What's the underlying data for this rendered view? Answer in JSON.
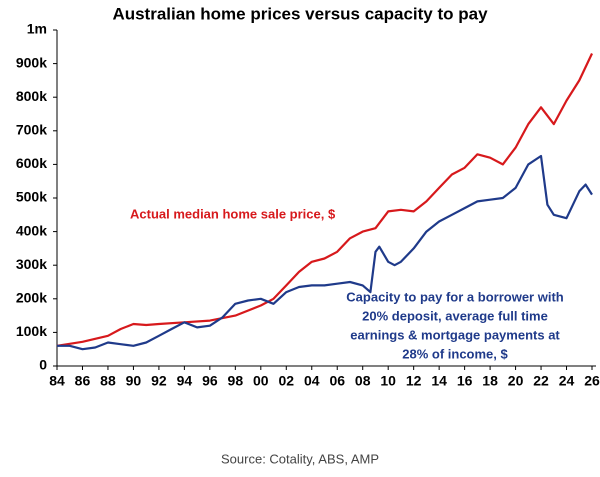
{
  "chart_data": {
    "type": "line",
    "title": "Australian home prices versus capacity to pay",
    "source": "Source: Cotality, ABS, AMP",
    "xlim": [
      1984,
      2026.3
    ],
    "xticks": [
      {
        "value": 1984,
        "label": "84"
      },
      {
        "value": 1986,
        "label": "86"
      },
      {
        "value": 1988,
        "label": "88"
      },
      {
        "value": 1990,
        "label": "90"
      },
      {
        "value": 1992,
        "label": "92"
      },
      {
        "value": 1994,
        "label": "94"
      },
      {
        "value": 1996,
        "label": "96"
      },
      {
        "value": 1998,
        "label": "98"
      },
      {
        "value": 2000,
        "label": "00"
      },
      {
        "value": 2002,
        "label": "02"
      },
      {
        "value": 2004,
        "label": "04"
      },
      {
        "value": 2006,
        "label": "06"
      },
      {
        "value": 2008,
        "label": "08"
      },
      {
        "value": 2010,
        "label": "10"
      },
      {
        "value": 2012,
        "label": "12"
      },
      {
        "value": 2014,
        "label": "14"
      },
      {
        "value": 2016,
        "label": "16"
      },
      {
        "value": 2018,
        "label": "18"
      },
      {
        "value": 2020,
        "label": "20"
      },
      {
        "value": 2022,
        "label": "22"
      },
      {
        "value": 2024,
        "label": "24"
      },
      {
        "value": 2026,
        "label": "26"
      }
    ],
    "ylim": [
      0,
      1000000
    ],
    "yticks": [
      0,
      {
        "value": 100000,
        "label": "100k"
      },
      {
        "value": 200000,
        "label": "200k"
      },
      {
        "value": 300000,
        "label": "300k"
      },
      {
        "value": 400000,
        "label": "400k"
      },
      {
        "value": 500000,
        "label": "500k"
      },
      {
        "value": 600000,
        "label": "600k"
      },
      {
        "value": 700000,
        "label": "700k"
      },
      {
        "value": 800000,
        "label": "800k"
      },
      {
        "value": 900000,
        "label": "900k"
      },
      {
        "value": 1000000,
        "label": "1m"
      }
    ],
    "series": [
      {
        "name": "Actual median home sale price, $",
        "color": "#d7191c",
        "x": [
          1984,
          1986,
          1988,
          1989,
          1990,
          1991,
          1992,
          1994,
          1996,
          1998,
          2000,
          2001,
          2002,
          2003,
          2004,
          2005,
          2006,
          2007,
          2008,
          2009,
          2010,
          2011,
          2012,
          2013,
          2014,
          2015,
          2016,
          2017,
          2018,
          2019,
          2020,
          2021,
          2022,
          2023,
          2024,
          2025,
          2026
        ],
        "values": [
          60000,
          72000,
          90000,
          110000,
          125000,
          122000,
          125000,
          130000,
          135000,
          150000,
          180000,
          200000,
          240000,
          280000,
          310000,
          320000,
          340000,
          380000,
          400000,
          410000,
          460000,
          465000,
          460000,
          490000,
          530000,
          570000,
          590000,
          630000,
          620000,
          600000,
          650000,
          720000,
          770000,
          720000,
          790000,
          850000,
          930000
        ]
      },
      {
        "name": "Capacity to pay for a borrower with 20% deposit, average full time earnings & mortgage payments at 28% of income, $",
        "color": "#1f3a8a",
        "x": [
          1984,
          1985,
          1986,
          1987,
          1988,
          1989,
          1990,
          1991,
          1992,
          1993,
          1994,
          1995,
          1996,
          1997,
          1998,
          1999,
          2000,
          2001,
          2002,
          2003,
          2004,
          2005,
          2006,
          2007,
          2008,
          2008.6,
          2009,
          2009.3,
          2010,
          2010.5,
          2011,
          2012,
          2013,
          2014,
          2015,
          2016,
          2017,
          2018,
          2019,
          2020,
          2021,
          2022,
          2022.5,
          2023,
          2024,
          2025,
          2025.5,
          2026
        ],
        "values": [
          60000,
          60000,
          50000,
          55000,
          70000,
          65000,
          60000,
          70000,
          90000,
          110000,
          130000,
          115000,
          120000,
          145000,
          185000,
          195000,
          200000,
          185000,
          220000,
          235000,
          240000,
          240000,
          245000,
          250000,
          240000,
          220000,
          340000,
          355000,
          310000,
          300000,
          310000,
          350000,
          400000,
          430000,
          450000,
          470000,
          490000,
          495000,
          500000,
          530000,
          600000,
          625000,
          480000,
          450000,
          440000,
          520000,
          540000,
          510000
        ]
      }
    ],
    "annotations": [
      {
        "lines": [
          "Actual median home sale price, $"
        ],
        "color": "#d7191c"
      },
      {
        "lines": [
          "Capacity to pay for a borrower with",
          "20% deposit, average full time",
          "earnings & mortgage payments at",
          "28% of income, $"
        ],
        "color": "#1f3a8a"
      }
    ]
  }
}
